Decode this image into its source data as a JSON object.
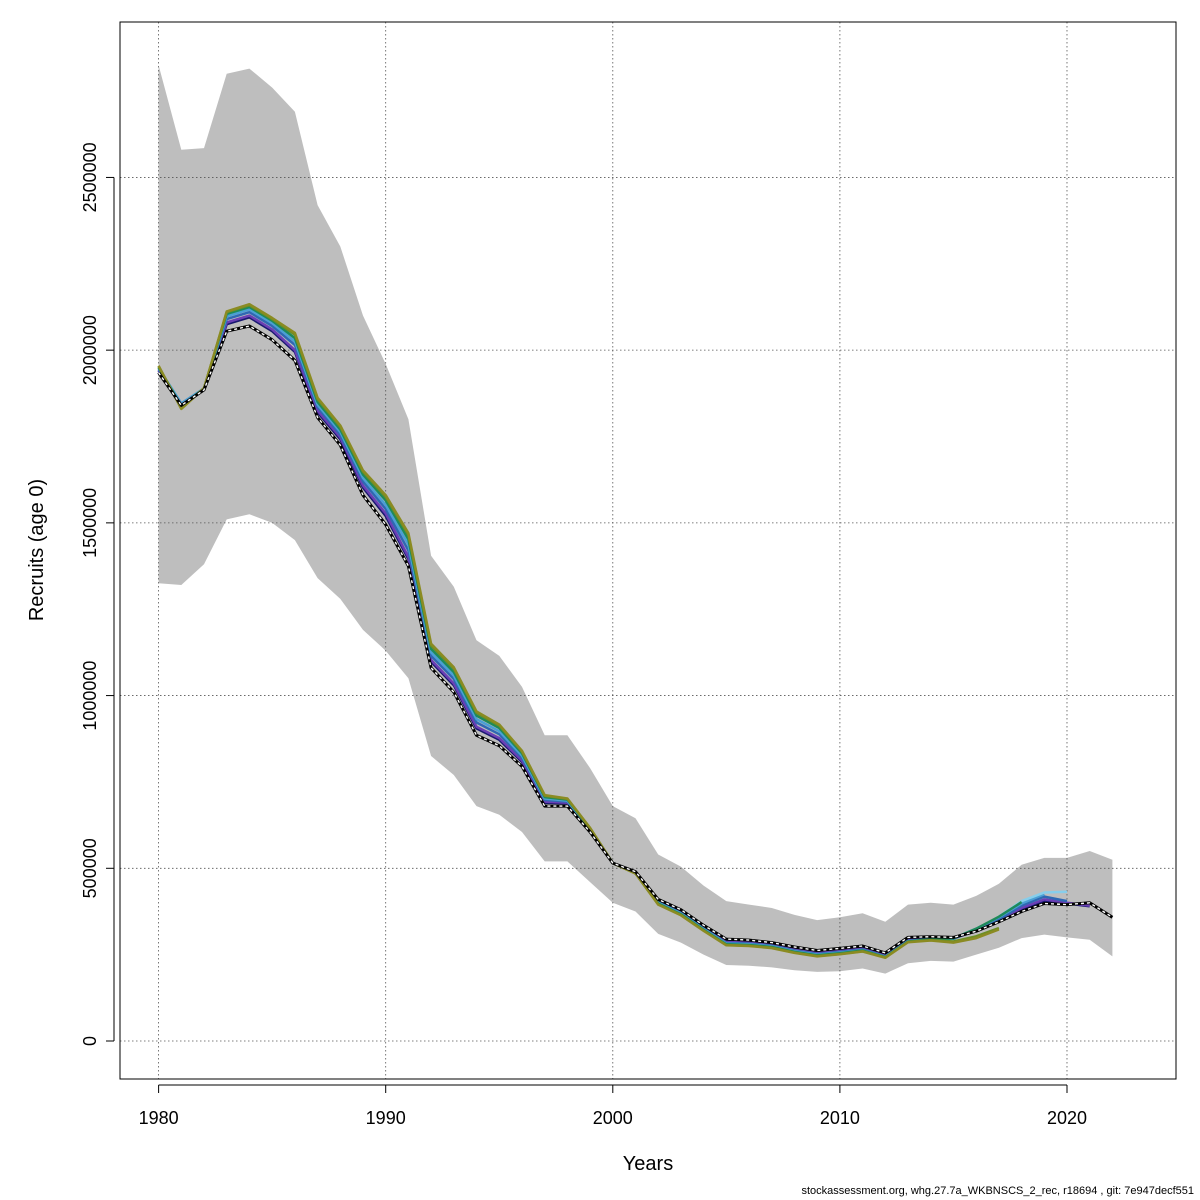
{
  "chart_data": {
    "type": "line",
    "title": "",
    "xlabel": "Years",
    "ylabel": "Recruits (age 0)",
    "xlim": [
      1978.3,
      2024.8
    ],
    "ylim": [
      -110000,
      2950000
    ],
    "x_ticks": [
      1980,
      1990,
      2000,
      2010,
      2020
    ],
    "x_tick_labels": [
      "1980",
      "1990",
      "2000",
      "2010",
      "2020"
    ],
    "y_ticks": [
      0,
      500000,
      1000000,
      1500000,
      2000000,
      2500000
    ],
    "y_tick_labels": [
      "0",
      "500000",
      "1000000",
      "1500000",
      "2000000",
      "2500000"
    ],
    "grid": true,
    "legend": "none",
    "confidence_band": {
      "color": "#bebebe",
      "x": [
        1980,
        1981,
        1982,
        1983,
        1984,
        1985,
        1986,
        1987,
        1988,
        1989,
        1990,
        1991,
        1992,
        1993,
        1994,
        1995,
        1996,
        1997,
        1998,
        1999,
        2000,
        2001,
        2002,
        2003,
        2004,
        2005,
        2006,
        2007,
        2008,
        2009,
        2010,
        2011,
        2012,
        2013,
        2014,
        2015,
        2016,
        2017,
        2018,
        2019,
        2020,
        2021,
        2022
      ],
      "upper": [
        2825000,
        2580000,
        2585000,
        2800000,
        2815000,
        2760000,
        2690000,
        2420000,
        2300000,
        2100000,
        1960000,
        1800000,
        1405000,
        1315000,
        1160000,
        1115000,
        1025000,
        885000,
        885000,
        790000,
        680000,
        645000,
        540000,
        505000,
        450000,
        405000,
        395000,
        385000,
        365000,
        350000,
        358000,
        370000,
        345000,
        395000,
        400000,
        395000,
        420000,
        455000,
        510000,
        530000,
        530000,
        550000,
        525000
      ],
      "lower": [
        1325000,
        1320000,
        1380000,
        1510000,
        1525000,
        1500000,
        1450000,
        1340000,
        1280000,
        1190000,
        1130000,
        1050000,
        825000,
        770000,
        680000,
        655000,
        605000,
        520000,
        520000,
        460000,
        400000,
        375000,
        310000,
        285000,
        250000,
        220000,
        218000,
        213000,
        205000,
        200000,
        202000,
        210000,
        195000,
        225000,
        232000,
        230000,
        250000,
        270000,
        298000,
        308000,
        300000,
        293000,
        245000
      ]
    },
    "series": [
      {
        "color": "#000000",
        "dashed_overlay": true,
        "x": [
          1980,
          1981,
          1982,
          1983,
          1984,
          1985,
          1986,
          1987,
          1988,
          1989,
          1990,
          1991,
          1992,
          1993,
          1994,
          1995,
          1996,
          1997,
          1998,
          1999,
          2000,
          2001,
          2002,
          2003,
          2004,
          2005,
          2006,
          2007,
          2008,
          2009,
          2010,
          2011,
          2012,
          2013,
          2014,
          2015,
          2016,
          2017,
          2018,
          2019,
          2020,
          2021,
          2022
        ],
        "values": [
          1935000,
          1840000,
          1885000,
          2055000,
          2070000,
          2030000,
          1970000,
          1805000,
          1725000,
          1580000,
          1495000,
          1375000,
          1080000,
          1010000,
          885000,
          855000,
          795000,
          680000,
          680000,
          605000,
          515000,
          490000,
          410000,
          380000,
          335000,
          295000,
          292000,
          285000,
          272000,
          262000,
          268000,
          275000,
          255000,
          300000,
          302000,
          300000,
          318000,
          345000,
          375000,
          398000,
          395000,
          400000,
          358000
        ]
      },
      {
        "color": "#191970",
        "x": [
          1980,
          1981,
          1982,
          1983,
          1984,
          1985,
          1986,
          1987,
          1988,
          1989,
          1990,
          1991,
          1992,
          1993,
          1994,
          1995,
          1996,
          1997,
          1998,
          1999,
          2000,
          2001,
          2002,
          2003,
          2004,
          2005,
          2006,
          2007,
          2008,
          2009,
          2010,
          2011,
          2012,
          2013,
          2014,
          2015,
          2016,
          2017,
          2018,
          2019,
          2020,
          2021
        ],
        "values": [
          1940000,
          1843000,
          1887000,
          2075000,
          2095000,
          2055000,
          1995000,
          1820000,
          1742000,
          1602000,
          1520000,
          1395000,
          1098000,
          1030000,
          905000,
          872000,
          808000,
          690000,
          688000,
          608000,
          515000,
          490000,
          408000,
          377000,
          332000,
          290000,
          288000,
          282000,
          268000,
          258000,
          264000,
          271000,
          250000,
          296000,
          299000,
          298000,
          318000,
          345000,
          380000,
          405000,
          398000,
          390000
        ]
      },
      {
        "color": "#6a3fb5",
        "x": [
          1980,
          1981,
          1982,
          1983,
          1984,
          1985,
          1986,
          1987,
          1988,
          1989,
          1990,
          1991,
          1992,
          1993,
          1994,
          1995,
          1996,
          1997,
          1998,
          1999,
          2000,
          2001,
          2002,
          2003,
          2004,
          2005,
          2006,
          2007,
          2008,
          2009,
          2010,
          2011,
          2012,
          2013,
          2014,
          2015,
          2016,
          2017,
          2018,
          2019,
          2020,
          2021
        ],
        "values": [
          1942000,
          1844000,
          1888000,
          2080000,
          2100000,
          2060000,
          2000000,
          1825000,
          1747000,
          1608000,
          1527000,
          1401000,
          1103000,
          1035000,
          910000,
          877000,
          812000,
          693000,
          690000,
          609000,
          515000,
          489000,
          405000,
          374000,
          329000,
          287000,
          285000,
          279000,
          265000,
          255000,
          261000,
          268000,
          247000,
          293000,
          297000,
          297000,
          320000,
          348000,
          385000,
          410000,
          400000,
          392000
        ]
      },
      {
        "color": "#2f68b3",
        "x": [
          1980,
          1981,
          1982,
          1983,
          1984,
          1985,
          1986,
          1987,
          1988,
          1989,
          1990,
          1991,
          1992,
          1993,
          1994,
          1995,
          1996,
          1997,
          1998,
          1999,
          2000,
          2001,
          2002,
          2003,
          2004,
          2005,
          2006,
          2007,
          2008,
          2009,
          2010,
          2011,
          2012,
          2013,
          2014,
          2015,
          2016,
          2017,
          2018,
          2019,
          2020
        ],
        "values": [
          1945000,
          1845000,
          1889000,
          2090000,
          2110000,
          2070000,
          2015000,
          1835000,
          1755000,
          1620000,
          1540000,
          1420000,
          1115000,
          1048000,
          922000,
          888000,
          820000,
          698000,
          693000,
          611000,
          515000,
          488000,
          402000,
          371000,
          326000,
          284000,
          282000,
          276000,
          262000,
          252000,
          258000,
          265000,
          245000,
          290000,
          295000,
          296000,
          322000,
          352000,
          392000,
          418000,
          405000
        ]
      },
      {
        "color": "#4a9fd4",
        "x": [
          1980,
          1981,
          1982,
          1983,
          1984,
          1985,
          1986,
          1987,
          1988,
          1989,
          1990,
          1991,
          1992,
          1993,
          1994,
          1995,
          1996,
          1997,
          1998,
          1999,
          2000,
          2001,
          2002,
          2003,
          2004,
          2005,
          2006,
          2007,
          2008,
          2009,
          2010,
          2011,
          2012,
          2013,
          2014,
          2015,
          2016,
          2017,
          2018,
          2019
        ],
        "values": [
          1948000,
          1846000,
          1889000,
          2098000,
          2118000,
          2078000,
          2025000,
          1842000,
          1763000,
          1630000,
          1552000,
          1437000,
          1125000,
          1058000,
          932000,
          897000,
          826000,
          702000,
          696000,
          613000,
          515000,
          487000,
          400000,
          369000,
          324000,
          282000,
          280000,
          274000,
          260000,
          250000,
          256000,
          263000,
          244000,
          289000,
          294000,
          297000,
          325000,
          358000,
          398000,
          425000
        ]
      },
      {
        "color": "#87ceeb",
        "x": [
          2017,
          2018,
          2019,
          2020
        ],
        "values": [
          360000,
          405000,
          430000,
          432000
        ]
      },
      {
        "color": "#1e8a5a",
        "x": [
          1980,
          1981,
          1982,
          1983,
          1984,
          1985,
          1986,
          1987,
          1988,
          1989,
          1990,
          1991,
          1992,
          1993,
          1994,
          1995,
          1996,
          1997,
          1998,
          1999,
          2000,
          2001,
          2002,
          2003,
          2004,
          2005,
          2006,
          2007,
          2008,
          2009,
          2010,
          2011,
          2012,
          2013,
          2014,
          2015,
          2016,
          2017,
          2018
        ],
        "values": [
          1950000,
          1838000,
          1889000,
          2105000,
          2125000,
          2085000,
          2035000,
          1850000,
          1770000,
          1640000,
          1565000,
          1452000,
          1135000,
          1068000,
          942000,
          906000,
          833000,
          706000,
          699000,
          615000,
          515000,
          486000,
          398000,
          367000,
          322000,
          280000,
          278000,
          272000,
          258000,
          248000,
          254000,
          262000,
          243000,
          288000,
          294000,
          297000,
          325000,
          360000,
          402000
        ]
      },
      {
        "color": "#6b8e23",
        "x": [
          1980,
          1981,
          1982,
          1983,
          1984,
          1985,
          1986,
          1987,
          1988,
          1989,
          1990,
          1991,
          1992,
          1993,
          1994,
          1995,
          1996,
          1997,
          1998,
          1999,
          2000,
          2001,
          2002,
          2003,
          2004,
          2005,
          2006,
          2007,
          2008,
          2009,
          2010,
          2011,
          2012,
          2013,
          2014,
          2015,
          2016,
          2017
        ],
        "values": [
          1953000,
          1832000,
          1890000,
          2110000,
          2130000,
          2090000,
          2045000,
          1858000,
          1778000,
          1648000,
          1575000,
          1465000,
          1145000,
          1078000,
          950000,
          913000,
          838000,
          710000,
          701000,
          616000,
          515000,
          485000,
          396000,
          365000,
          320000,
          278000,
          276000,
          270000,
          256000,
          246000,
          252000,
          260000,
          242000,
          287000,
          292000,
          288000,
          303000,
          327000
        ]
      },
      {
        "color": "#8b8b22",
        "x": [
          1980,
          1981,
          1982,
          1983,
          1984,
          1985,
          1986,
          1987,
          1988,
          1989,
          1990,
          1991,
          1992,
          1993,
          1994,
          1995,
          1996,
          1997,
          1998,
          1999,
          2000,
          2001,
          2002,
          2003,
          2004,
          2005,
          2006,
          2007,
          2008,
          2009,
          2010,
          2011,
          2012,
          2013,
          2014,
          2015,
          2016,
          2017
        ],
        "values": [
          1955000,
          1830000,
          1890000,
          2112000,
          2133000,
          2093000,
          2050000,
          1862000,
          1782000,
          1652000,
          1580000,
          1470000,
          1150000,
          1082000,
          954000,
          916000,
          840000,
          712000,
          702000,
          617000,
          515000,
          485000,
          395000,
          364000,
          319000,
          277000,
          275000,
          269000,
          255000,
          245000,
          251000,
          259000,
          241000,
          286000,
          291000,
          285000,
          298000,
          323000
        ]
      }
    ]
  },
  "footer": {
    "text": "stockassessment.org, whg.27.7a_WKBNSCS_2_rec, r18694 , git: 7e947decf551"
  }
}
